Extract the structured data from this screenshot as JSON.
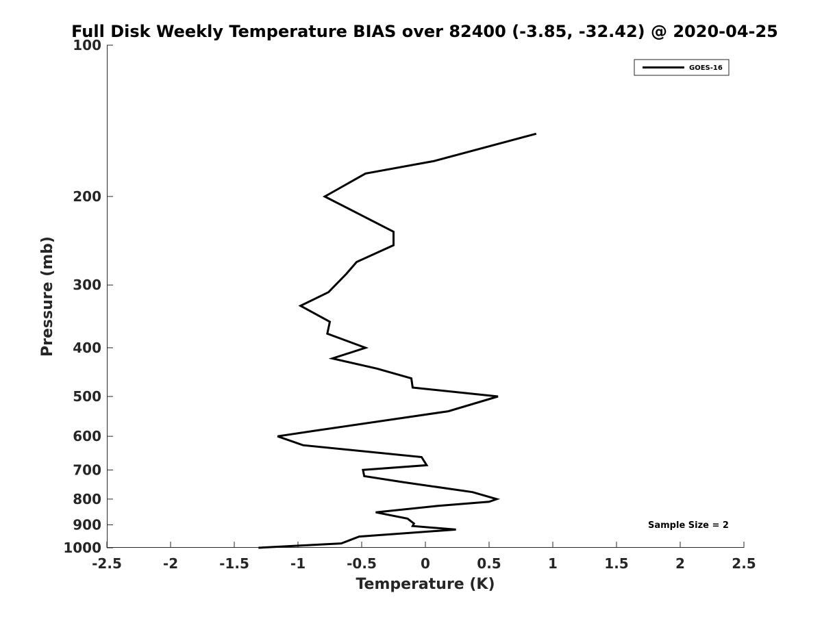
{
  "chart_data": {
    "type": "line",
    "title": "Full Disk Weekly Temperature BIAS over 82400 (-3.85, -32.42) @ 2020-04-25",
    "xlabel": "Temperature (K)",
    "ylabel": "Pressure (mb)",
    "xlim": [
      -2.5,
      2.5
    ],
    "ylim": [
      100,
      1000
    ],
    "y_scale": "log",
    "y_reversed": true,
    "grid": false,
    "legend_position": "top-right",
    "xticks": [
      -2.5,
      -2,
      -1.5,
      -1,
      -0.5,
      0,
      0.5,
      1,
      1.5,
      2,
      2.5
    ],
    "xtick_labels": [
      "-2.5",
      "-2",
      "-1.5",
      "-1",
      "-0.5",
      "0",
      "0.5",
      "1",
      "1.5",
      "2",
      "2.5"
    ],
    "yticks": [
      100,
      200,
      300,
      400,
      500,
      600,
      700,
      800,
      900,
      1000
    ],
    "ytick_labels": [
      "100",
      "200",
      "300",
      "400",
      "500",
      "600",
      "700",
      "800",
      "900",
      "1000"
    ],
    "series": [
      {
        "name": "GOES-16",
        "color": "#000000",
        "points": [
          {
            "x": 0.87,
            "y": 150
          },
          {
            "x": 0.07,
            "y": 170
          },
          {
            "x": -0.47,
            "y": 180
          },
          {
            "x": -0.79,
            "y": 200
          },
          {
            "x": -0.25,
            "y": 235
          },
          {
            "x": -0.25,
            "y": 250
          },
          {
            "x": -0.54,
            "y": 270
          },
          {
            "x": -0.62,
            "y": 285
          },
          {
            "x": -0.76,
            "y": 310
          },
          {
            "x": -0.98,
            "y": 330
          },
          {
            "x": -0.75,
            "y": 355
          },
          {
            "x": -0.77,
            "y": 375
          },
          {
            "x": -0.47,
            "y": 400
          },
          {
            "x": -0.73,
            "y": 420
          },
          {
            "x": -0.38,
            "y": 440
          },
          {
            "x": -0.11,
            "y": 460
          },
          {
            "x": -0.1,
            "y": 480
          },
          {
            "x": 0.57,
            "y": 500
          },
          {
            "x": 0.18,
            "y": 535
          },
          {
            "x": -0.87,
            "y": 585
          },
          {
            "x": -1.16,
            "y": 600
          },
          {
            "x": -0.96,
            "y": 625
          },
          {
            "x": -0.03,
            "y": 660
          },
          {
            "x": 0.01,
            "y": 685
          },
          {
            "x": -0.49,
            "y": 700
          },
          {
            "x": -0.48,
            "y": 720
          },
          {
            "x": -0.18,
            "y": 740
          },
          {
            "x": 0.37,
            "y": 775
          },
          {
            "x": 0.56,
            "y": 800
          },
          {
            "x": 0.5,
            "y": 810
          },
          {
            "x": 0.1,
            "y": 825
          },
          {
            "x": -0.39,
            "y": 850
          },
          {
            "x": -0.14,
            "y": 875
          },
          {
            "x": -0.09,
            "y": 895
          },
          {
            "x": -0.1,
            "y": 905
          },
          {
            "x": 0.24,
            "y": 920
          },
          {
            "x": -0.52,
            "y": 950
          },
          {
            "x": -0.66,
            "y": 980
          },
          {
            "x": -1.31,
            "y": 1000
          }
        ]
      }
    ],
    "annotations": [
      {
        "text": "Sample Size = 2",
        "position": "bottom-right"
      }
    ]
  }
}
